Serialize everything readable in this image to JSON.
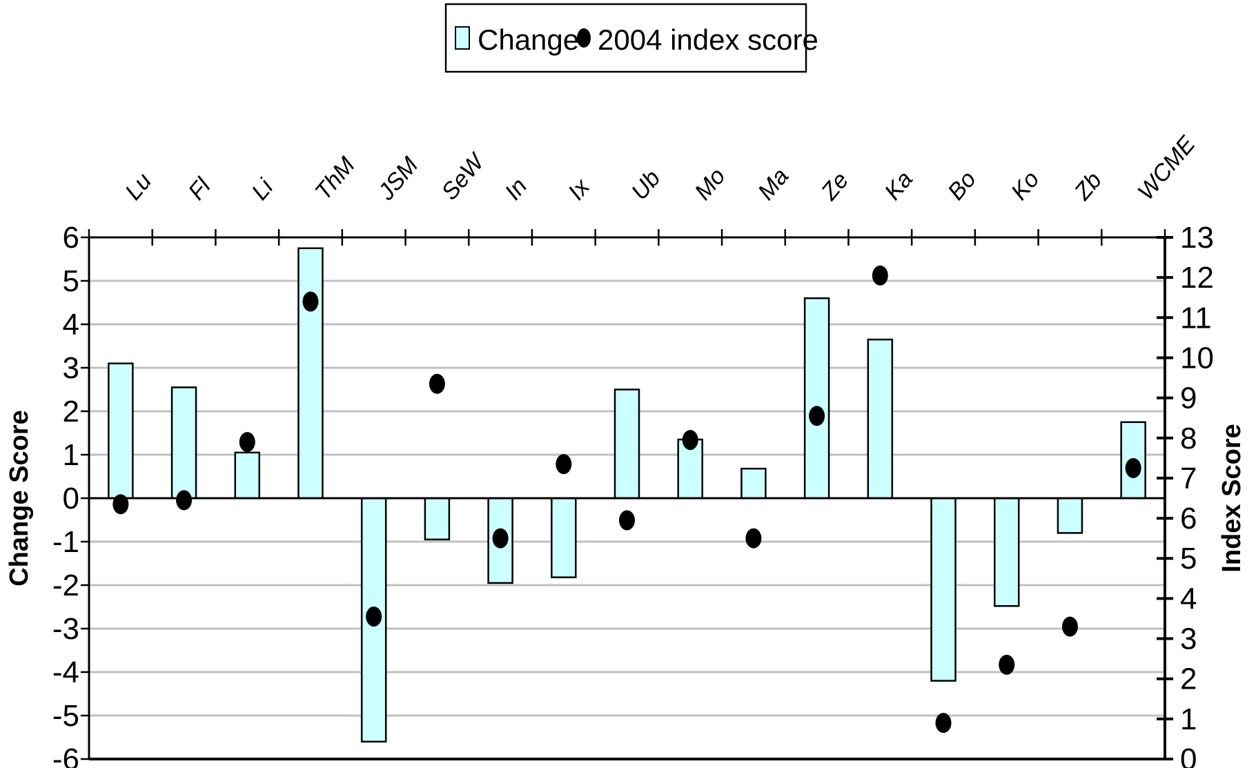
{
  "chart_data": {
    "type": "bar",
    "categories": [
      "Lu",
      "Fl",
      "Li",
      "ThM",
      "JSM",
      "SeW",
      "In",
      "Ix",
      "Ub",
      "Mo",
      "Ma",
      "Ze",
      "Ka",
      "Bo",
      "Ko",
      "Zb",
      "WCME"
    ],
    "series": [
      {
        "name": "Change",
        "type": "bar",
        "axis": "left",
        "values": [
          3.1,
          2.55,
          1.05,
          5.75,
          -5.6,
          -0.95,
          -1.95,
          -1.82,
          2.5,
          1.35,
          0.68,
          4.6,
          3.65,
          -4.2,
          -2.48,
          -0.8,
          1.75
        ]
      },
      {
        "name": "2004 index score",
        "type": "scatter",
        "axis": "right",
        "values": [
          6.35,
          6.45,
          7.9,
          11.4,
          3.55,
          9.35,
          5.5,
          7.35,
          5.95,
          7.95,
          5.5,
          8.55,
          12.05,
          0.9,
          2.35,
          3.3,
          7.25
        ]
      }
    ],
    "ylabel": "Change Score",
    "ylim": [
      -6,
      6
    ],
    "yticks": [
      "6",
      "5",
      "4",
      "3",
      "2",
      "1",
      "0",
      "-1",
      "-2",
      "-3",
      "-4",
      "-5",
      "-6"
    ],
    "y2label": "Index Score",
    "y2lim": [
      0,
      13
    ],
    "y2ticks": [
      "13",
      "12",
      "11",
      "10",
      "9",
      "8",
      "7",
      "6",
      "5",
      "4",
      "3",
      "2",
      "1",
      "0"
    ],
    "grid": true,
    "legend_position": "top-center",
    "colors": {
      "bar_fill": "#ccffff",
      "bar_stroke": "#000000",
      "marker": "#000000",
      "grid": "#c0c0c0"
    }
  }
}
